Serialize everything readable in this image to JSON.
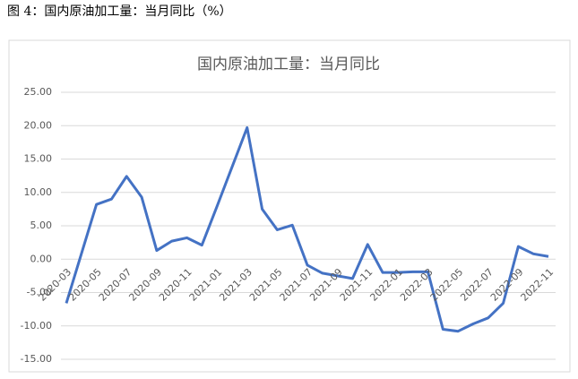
{
  "caption": "图 4：国内原油加工量：当月同比（%）",
  "chart_data": {
    "type": "line",
    "title": "国内原油加工量：当月同比",
    "categories": [
      "2020-03",
      null,
      "2020-05",
      null,
      "2020-07",
      null,
      "2020-09",
      null,
      "2020-11",
      null,
      "2021-01",
      null,
      "2021-03",
      null,
      "2021-05",
      null,
      "2021-07",
      null,
      "2021-09",
      null,
      "2021-11",
      null,
      "2022-01",
      null,
      "2022-03",
      null,
      "2022-05",
      null,
      "2022-07",
      null,
      "2022-09",
      null,
      "2022-11"
    ],
    "series": [
      {
        "name": "国内原油加工量：当月同比",
        "color": "#4472c4",
        "values": [
          -6.6,
          0.8,
          8.2,
          9.0,
          12.4,
          9.3,
          1.3,
          2.7,
          3.2,
          2.1,
          7.9,
          13.8,
          19.7,
          7.5,
          4.4,
          5.1,
          -0.9,
          -2.1,
          -2.5,
          -2.9,
          2.2,
          -2.0,
          -2.0,
          -1.9,
          -1.9,
          -10.5,
          -10.8,
          -9.7,
          -8.8,
          -6.6,
          1.9,
          0.8,
          0.4
        ]
      }
    ],
    "ylim": [
      -15,
      25
    ],
    "yticks": [
      {
        "value": -15,
        "label": "-15.00"
      },
      {
        "value": -10,
        "label": "-10.00"
      },
      {
        "value": -5,
        "label": "-5.00"
      },
      {
        "value": 0,
        "label": "0.00"
      },
      {
        "value": 5,
        "label": "5.00"
      },
      {
        "value": 10,
        "label": "10.00"
      },
      {
        "value": 15,
        "label": "15.00"
      },
      {
        "value": 20,
        "label": "20.00"
      },
      {
        "value": 25,
        "label": "25.00"
      }
    ],
    "grid": true
  }
}
